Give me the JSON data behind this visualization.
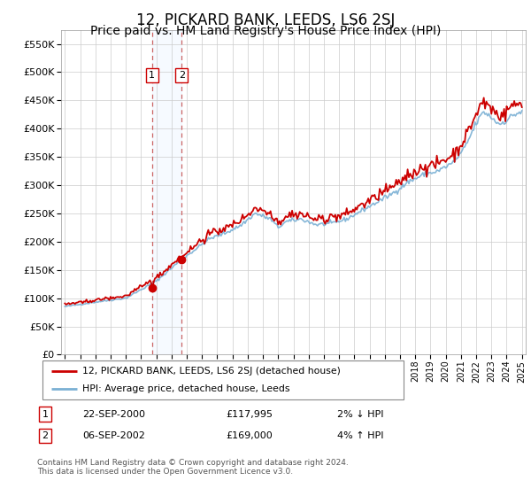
{
  "title": "12, PICKARD BANK, LEEDS, LS6 2SJ",
  "subtitle": "Price paid vs. HM Land Registry's House Price Index (HPI)",
  "title_fontsize": 12,
  "subtitle_fontsize": 10,
  "legend_line1": "12, PICKARD BANK, LEEDS, LS6 2SJ (detached house)",
  "legend_line2": "HPI: Average price, detached house, Leeds",
  "line1_color": "#cc0000",
  "line2_color": "#7ab0d4",
  "annotation1": {
    "num": "1",
    "date": "22-SEP-2000",
    "price": "£117,995",
    "note": "2% ↓ HPI"
  },
  "annotation2": {
    "num": "2",
    "date": "06-SEP-2002",
    "price": "£169,000",
    "note": "4% ↑ HPI"
  },
  "shade_color": "#ddeeff",
  "footer": "Contains HM Land Registry data © Crown copyright and database right 2024.\nThis data is licensed under the Open Government Licence v3.0.",
  "ylim": [
    0,
    575000
  ],
  "yticks": [
    0,
    50000,
    100000,
    150000,
    200000,
    250000,
    300000,
    350000,
    400000,
    450000,
    500000,
    550000
  ],
  "sale1_year": 2000.72,
  "sale1_price": 117995,
  "sale2_year": 2002.67,
  "sale2_price": 169000
}
